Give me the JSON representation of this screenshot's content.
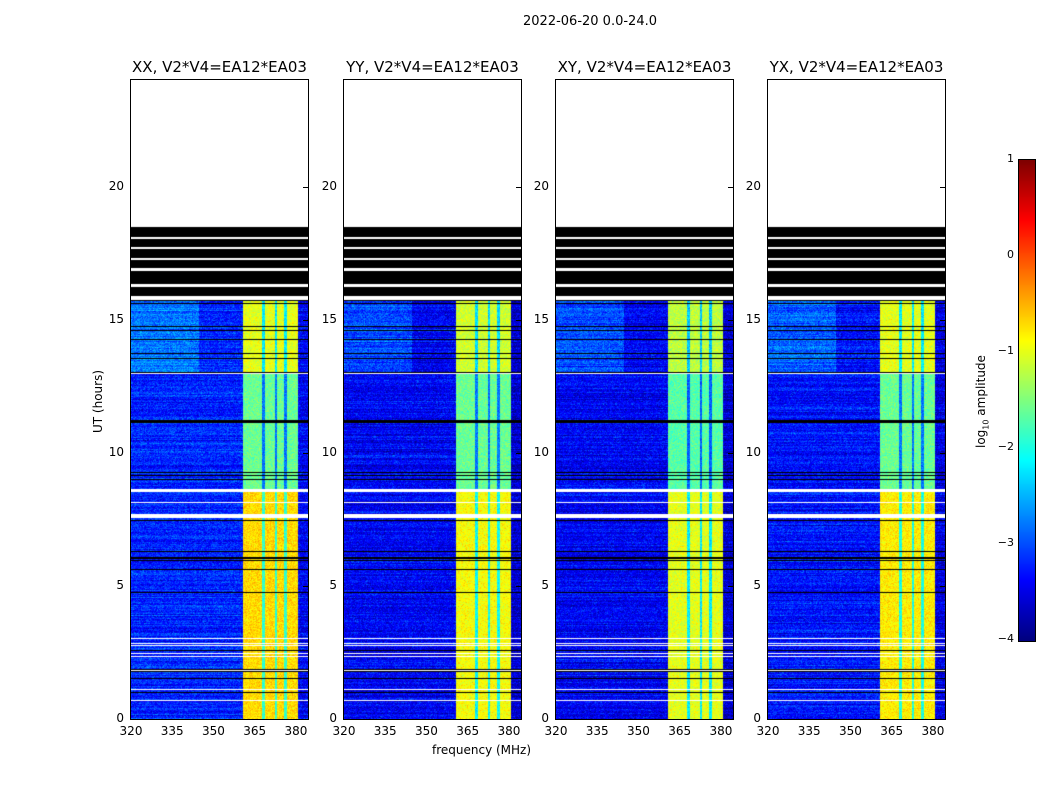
{
  "figure": {
    "suptitle": "2022-06-20 0.0-24.0"
  },
  "chart_data": {
    "type": "heatmap",
    "title": "2022-06-20 0.0-24.0",
    "xlabel": "frequency (MHz)",
    "ylabel": "UT (hours)",
    "xlim": [
      320,
      384.4
    ],
    "ylim": [
      0,
      24
    ],
    "xticks": [
      "320",
      "335",
      "350",
      "365",
      "380"
    ],
    "yticks": [
      "0",
      "5",
      "10",
      "15",
      "20"
    ],
    "panels": [
      {
        "title": "XX, V2*V4=EA12*EA03",
        "band_level": [
          -0.7,
          -1.6,
          -1.0
        ],
        "bg_level": -3.2
      },
      {
        "title": "YY, V2*V4=EA12*EA03",
        "band_level": [
          -0.9,
          -1.6,
          -1.1
        ],
        "bg_level": -3.4
      },
      {
        "title": "XY, V2*V4=EA12*EA03",
        "band_level": [
          -1.0,
          -1.7,
          -1.2
        ],
        "bg_level": -3.4
      },
      {
        "title": "YX, V2*V4=EA12*EA03",
        "band_level": [
          -0.8,
          -1.6,
          -1.0
        ],
        "bg_level": -3.3
      }
    ],
    "bright_band_mhz": [
      360.7,
      380.4
    ],
    "data_extent_hours": [
      0,
      15.75
    ],
    "flagged_block_hours": [
      15.9,
      18.5
    ],
    "colorbar": {
      "label": "log10 amplitude",
      "label_main": "log",
      "label_sub": "10",
      "label_rest": " amplitude",
      "ticks": [
        "1",
        "0",
        "−1",
        "−2",
        "−3",
        "−4"
      ],
      "range": [
        -4,
        1
      ],
      "cmap": "jet"
    }
  }
}
